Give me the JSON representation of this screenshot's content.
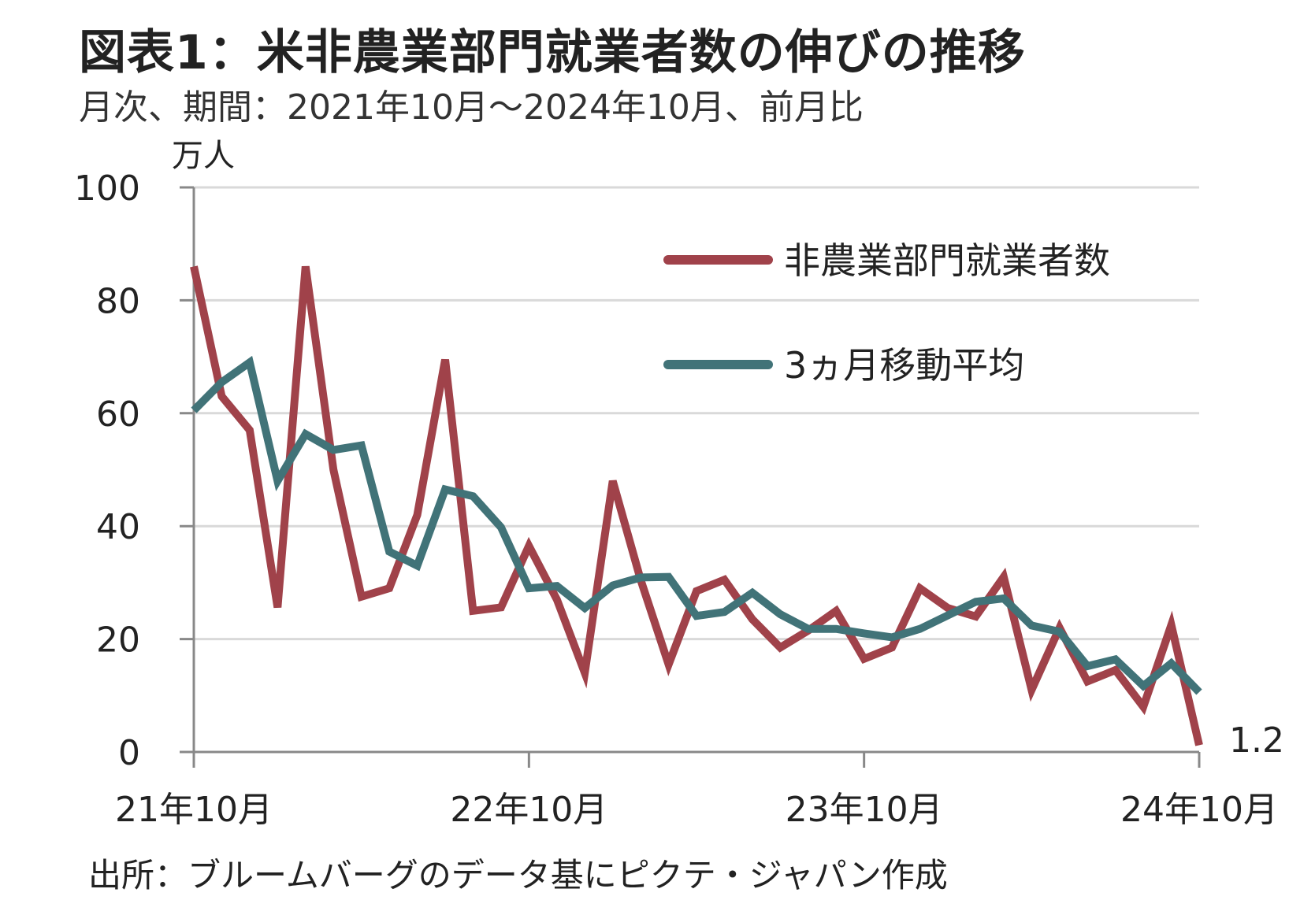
{
  "header": {
    "title": "図表1：米非農業部門就業者数の伸びの推移",
    "subtitle": "月次、期間：2021年10月～2024年10月、前月比"
  },
  "footer": {
    "source": "出所：ブルームバーグのデータ基にピクテ・ジャパン作成"
  },
  "chart_data": {
    "type": "line",
    "ylabel": "万人",
    "ylim": [
      0,
      100
    ],
    "yticks": [
      "0",
      "20",
      "40",
      "60",
      "80",
      "100"
    ],
    "ytick_values": [
      0,
      20,
      40,
      60,
      80,
      100
    ],
    "xtick_labels": [
      "21年10月",
      "22年10月",
      "23年10月",
      "24年10月"
    ],
    "xtick_index": [
      0,
      12,
      24,
      36
    ],
    "grid": true,
    "legend_position": "top-right",
    "end_label": "1.2",
    "series": [
      {
        "name": "非農業部門就業者数",
        "color": "#a0424a",
        "values": [
          86,
          63,
          57,
          25.6,
          86,
          50,
          27.5,
          29,
          42,
          69.5,
          25,
          25.6,
          36.5,
          27,
          14,
          48,
          30.5,
          15.5,
          28.5,
          30.5,
          23.5,
          18.5,
          21.5,
          25,
          16.5,
          18.5,
          29,
          25.5,
          24,
          31,
          11,
          22,
          12.5,
          14.5,
          8,
          22.5,
          1.2
        ]
      },
      {
        "name": "3ヵ月移動平均",
        "color": "#417378",
        "values": [
          60.5,
          65.5,
          69,
          48,
          56.3,
          53.5,
          54.3,
          35.5,
          33,
          46.5,
          45.3,
          39.8,
          29,
          29.4,
          25.5,
          29.5,
          30.9,
          31,
          24.1,
          24.8,
          28.2,
          24.4,
          21.8,
          21.8,
          21,
          20.3,
          21.8,
          24.2,
          26.6,
          27.2,
          22.4,
          21.3,
          15.2,
          16.4,
          11.7,
          15.7,
          10.6
        ]
      }
    ]
  }
}
